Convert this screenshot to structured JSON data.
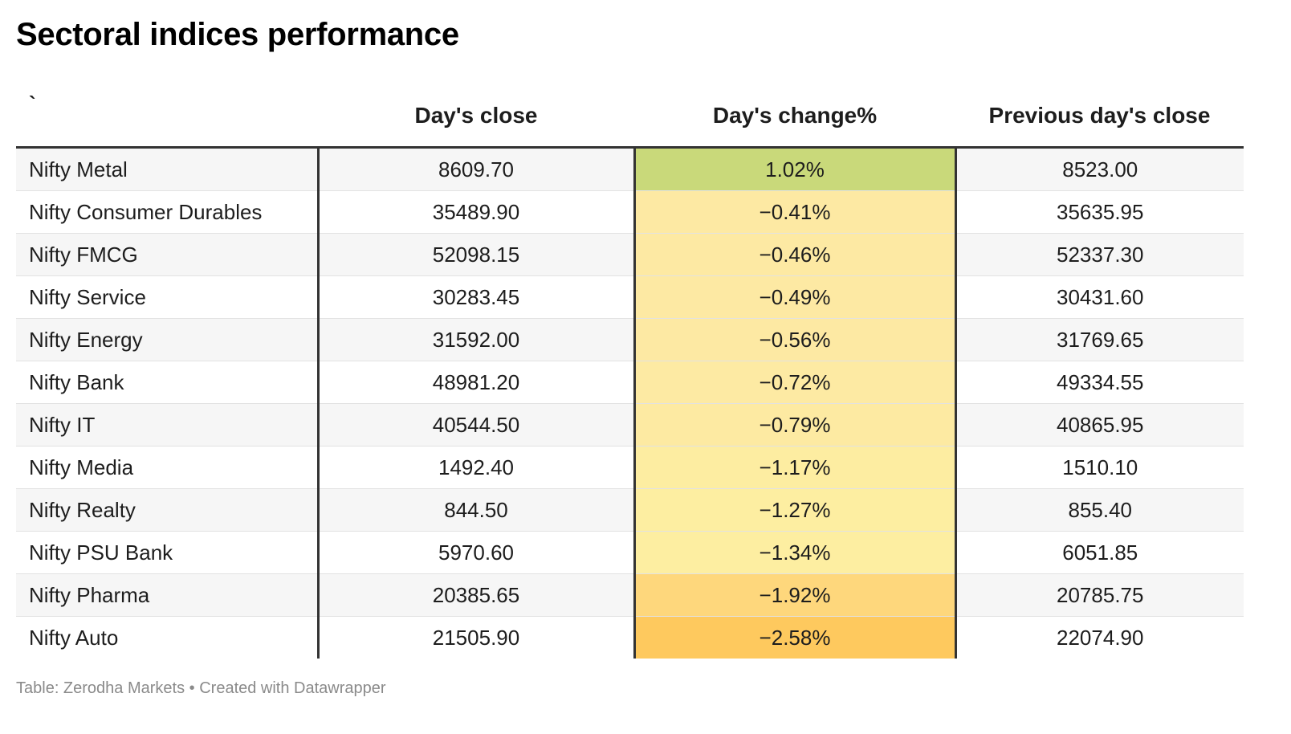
{
  "title": "Sectoral indices performance",
  "footer": "Table: Zerodha Markets • Created with Datawrapper",
  "colors": {
    "positive_high": "#c9d97a",
    "negative_low": "#fde9a3",
    "negative_high": "#fec95e",
    "divider": "#333333"
  },
  "chart_data": {
    "type": "table",
    "columns": [
      "`",
      "Day's close",
      "Day's change%",
      "Previous day's close"
    ],
    "rows": [
      {
        "name": "Nifty Metal",
        "close": "8609.70",
        "change": "1.02%",
        "change_value": 1.02,
        "prev": "8523.00"
      },
      {
        "name": "Nifty Consumer Durables",
        "close": "35489.90",
        "change": "−0.41%",
        "change_value": -0.41,
        "prev": "35635.95"
      },
      {
        "name": "Nifty FMCG",
        "close": "52098.15",
        "change": "−0.46%",
        "change_value": -0.46,
        "prev": "52337.30"
      },
      {
        "name": "Nifty Service",
        "close": "30283.45",
        "change": "−0.49%",
        "change_value": -0.49,
        "prev": "30431.60"
      },
      {
        "name": "Nifty Energy",
        "close": "31592.00",
        "change": "−0.56%",
        "change_value": -0.56,
        "prev": "31769.65"
      },
      {
        "name": "Nifty Bank",
        "close": "48981.20",
        "change": "−0.72%",
        "change_value": -0.72,
        "prev": "49334.55"
      },
      {
        "name": "Nifty IT",
        "close": "40544.50",
        "change": "−0.79%",
        "change_value": -0.79,
        "prev": "40865.95"
      },
      {
        "name": "Nifty Media",
        "close": "1492.40",
        "change": "−1.17%",
        "change_value": -1.17,
        "prev": "1510.10"
      },
      {
        "name": "Nifty Realty",
        "close": "844.50",
        "change": "−1.27%",
        "change_value": -1.27,
        "prev": "855.40"
      },
      {
        "name": "Nifty PSU Bank",
        "close": "5970.60",
        "change": "−1.34%",
        "change_value": -1.34,
        "prev": "6051.85"
      },
      {
        "name": "Nifty Pharma",
        "close": "20385.65",
        "change": "−1.92%",
        "change_value": -1.92,
        "prev": "20785.75"
      },
      {
        "name": "Nifty Auto",
        "close": "21505.90",
        "change": "−2.58%",
        "change_value": -2.58,
        "prev": "22074.90"
      }
    ]
  }
}
